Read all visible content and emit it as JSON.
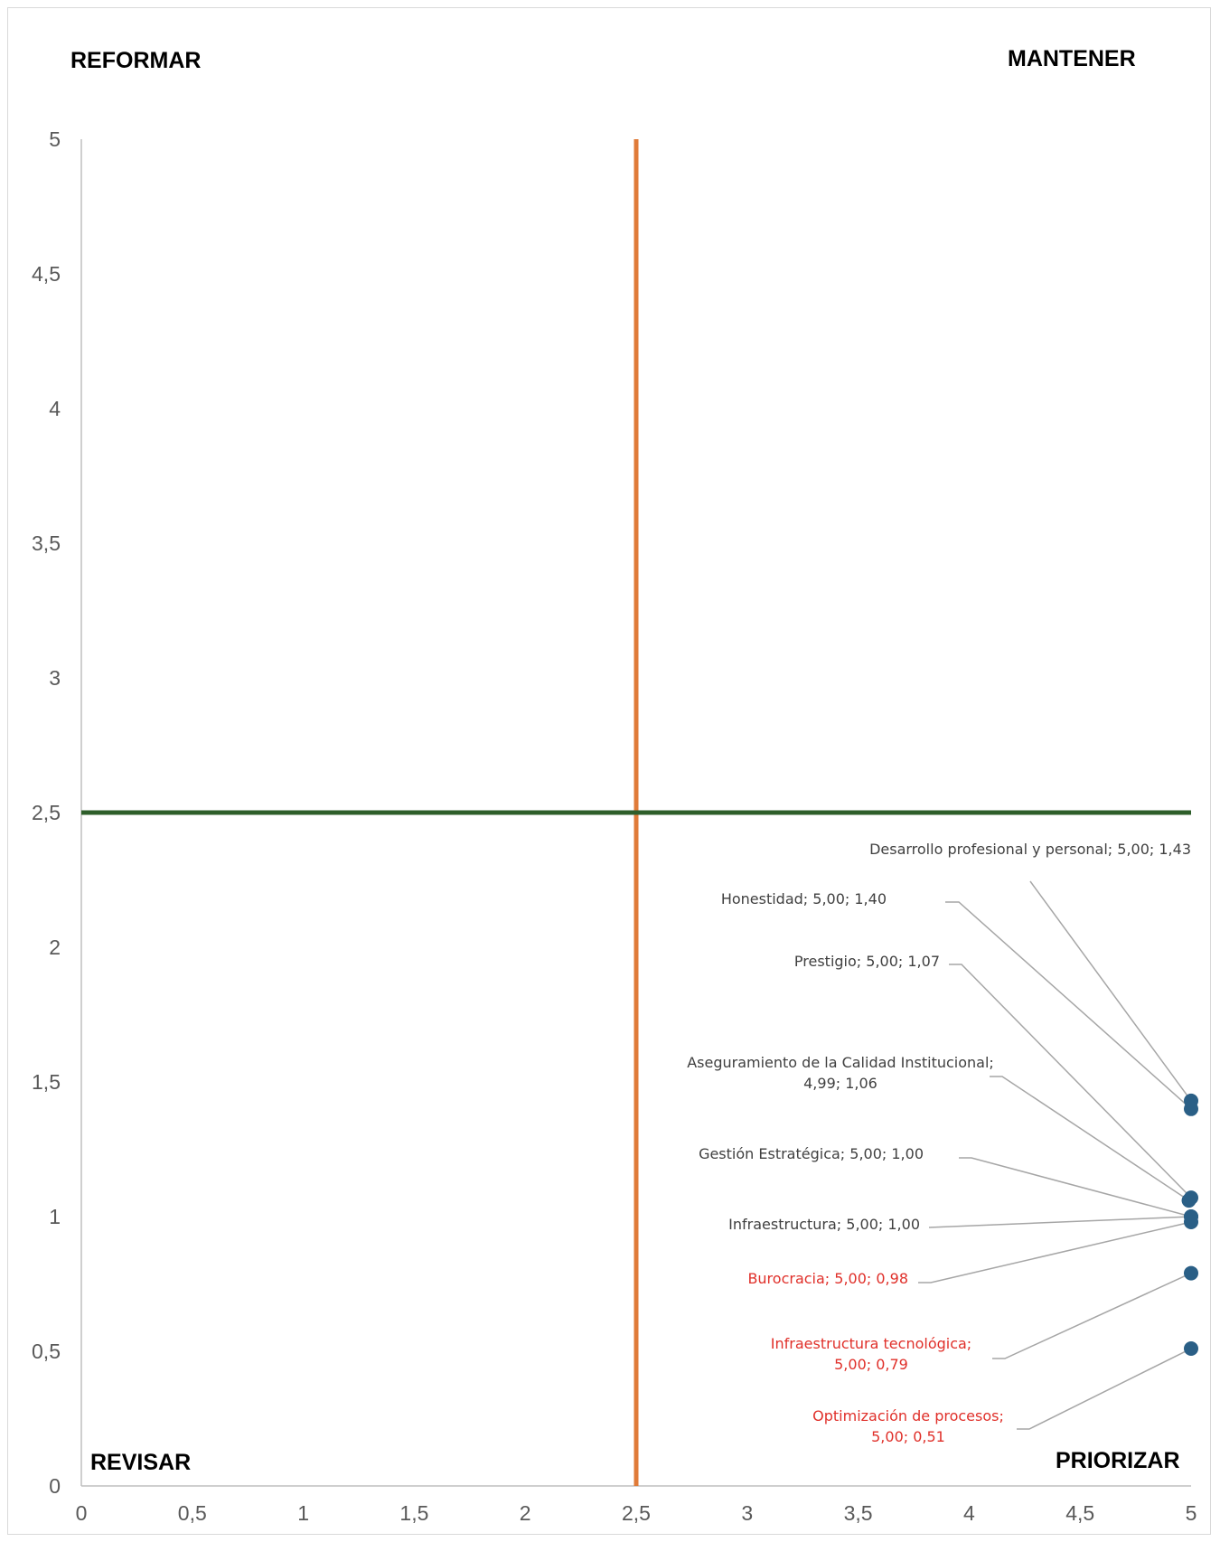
{
  "chart_data": {
    "type": "scatter",
    "title": "",
    "xlabel": "",
    "ylabel": "",
    "xlim": [
      0,
      5
    ],
    "ylim": [
      0,
      5
    ],
    "x_ticks": [
      "0",
      "0,5",
      "1",
      "1,5",
      "2",
      "2,5",
      "3",
      "3,5",
      "4",
      "4,5",
      "5"
    ],
    "y_ticks": [
      "0",
      "0,5",
      "1",
      "1,5",
      "2",
      "2,5",
      "3",
      "3,5",
      "4",
      "4,5",
      "5"
    ],
    "x_tick_values": [
      0,
      0.5,
      1,
      1.5,
      2,
      2.5,
      3,
      3.5,
      4,
      4.5,
      5
    ],
    "y_tick_values": [
      0,
      0.5,
      1,
      1.5,
      2,
      2.5,
      3,
      3.5,
      4,
      4.5,
      5
    ],
    "grid": false,
    "reference_lines": [
      {
        "name": "vertical-threshold",
        "axis": "x",
        "value": 2.5,
        "color": "#E07B39"
      },
      {
        "name": "horizontal-threshold",
        "axis": "y",
        "value": 2.5,
        "color": "#2E5E2A"
      }
    ],
    "quadrants": {
      "top_left": "REFORMAR",
      "top_right": "MANTENER",
      "bottom_left": "REVISAR",
      "bottom_right": "PRIORIZAR"
    },
    "point_color": "#2A5F86",
    "label_colors": {
      "normal": "#404040",
      "highlight": "#E0302A"
    },
    "points": [
      {
        "name": "Desarrollo profesional y personal",
        "x": 5.0,
        "y": 1.43,
        "label_lines": [
          "Desarrollo profesional y personal; 5,00; 1,43"
        ],
        "highlight": false
      },
      {
        "name": "Honestidad",
        "x": 5.0,
        "y": 1.4,
        "label_lines": [
          "Honestidad; 5,00; 1,40"
        ],
        "highlight": false
      },
      {
        "name": "Prestigio",
        "x": 5.0,
        "y": 1.07,
        "label_lines": [
          "Prestigio; 5,00; 1,07"
        ],
        "highlight": false
      },
      {
        "name": "Aseguramiento de la Calidad Institucional",
        "x": 4.99,
        "y": 1.06,
        "label_lines": [
          "Aseguramiento de la Calidad Institucional;",
          "4,99; 1,06"
        ],
        "highlight": false
      },
      {
        "name": "Gestión Estratégica",
        "x": 5.0,
        "y": 1.0,
        "label_lines": [
          "Gestión Estratégica; 5,00; 1,00"
        ],
        "highlight": false
      },
      {
        "name": "Infraestructura",
        "x": 5.0,
        "y": 1.0,
        "label_lines": [
          "Infraestructura; 5,00; 1,00"
        ],
        "highlight": false
      },
      {
        "name": "Burocracia",
        "x": 5.0,
        "y": 0.98,
        "label_lines": [
          "Burocracia; 5,00; 0,98"
        ],
        "highlight": true
      },
      {
        "name": "Infraestructura tecnológica",
        "x": 5.0,
        "y": 0.79,
        "label_lines": [
          "Infraestructura tecnológica;",
          "5,00; 0,79"
        ],
        "highlight": true
      },
      {
        "name": "Optimización de procesos",
        "x": 5.0,
        "y": 0.51,
        "label_lines": [
          "Optimización de procesos;",
          "5,00; 0,51"
        ],
        "highlight": true
      }
    ]
  }
}
